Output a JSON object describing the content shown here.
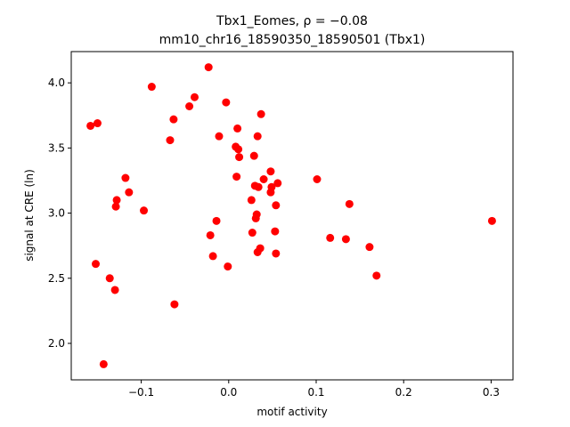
{
  "chart_data": {
    "type": "scatter",
    "title_line1": "Tbx1_Eomes, ρ = −0.08",
    "title_line2": "mm10_chr16_18590350_18590501 (Tbx1)",
    "xlabel": "motif activity",
    "ylabel": "signal at CRE (ln)",
    "xlim": [
      -0.18,
      0.325
    ],
    "ylim": [
      1.72,
      4.24
    ],
    "xticks": [
      -0.1,
      0.0,
      0.1,
      0.2,
      0.3
    ],
    "xtick_labels": [
      "−0.1",
      "0.0",
      "0.1",
      "0.2",
      "0.3"
    ],
    "yticks": [
      2.0,
      2.5,
      3.0,
      3.5,
      4.0
    ],
    "ytick_labels": [
      "2.0",
      "2.5",
      "3.0",
      "3.5",
      "4.0"
    ],
    "grid": false,
    "color": "#ff0000",
    "points": [
      {
        "x": -0.158,
        "y": 3.67
      },
      {
        "x": -0.15,
        "y": 3.69
      },
      {
        "x": -0.152,
        "y": 2.61
      },
      {
        "x": -0.136,
        "y": 2.5
      },
      {
        "x": -0.13,
        "y": 2.41
      },
      {
        "x": -0.143,
        "y": 1.84
      },
      {
        "x": -0.128,
        "y": 3.1
      },
      {
        "x": -0.129,
        "y": 3.05
      },
      {
        "x": -0.118,
        "y": 3.27
      },
      {
        "x": -0.114,
        "y": 3.16
      },
      {
        "x": -0.097,
        "y": 3.02
      },
      {
        "x": -0.088,
        "y": 3.97
      },
      {
        "x": -0.067,
        "y": 3.56
      },
      {
        "x": -0.063,
        "y": 3.72
      },
      {
        "x": -0.062,
        "y": 2.3
      },
      {
        "x": -0.045,
        "y": 3.82
      },
      {
        "x": -0.039,
        "y": 3.89
      },
      {
        "x": -0.023,
        "y": 4.12
      },
      {
        "x": -0.021,
        "y": 2.83
      },
      {
        "x": -0.018,
        "y": 2.67
      },
      {
        "x": -0.014,
        "y": 2.94
      },
      {
        "x": -0.011,
        "y": 3.59
      },
      {
        "x": -0.003,
        "y": 3.85
      },
      {
        "x": -0.001,
        "y": 2.59
      },
      {
        "x": 0.008,
        "y": 3.51
      },
      {
        "x": 0.009,
        "y": 3.28
      },
      {
        "x": 0.01,
        "y": 3.65
      },
      {
        "x": 0.011,
        "y": 3.49
      },
      {
        "x": 0.012,
        "y": 3.43
      },
      {
        "x": 0.026,
        "y": 3.1
      },
      {
        "x": 0.027,
        "y": 2.85
      },
      {
        "x": 0.029,
        "y": 3.44
      },
      {
        "x": 0.03,
        "y": 3.21
      },
      {
        "x": 0.031,
        "y": 2.96
      },
      {
        "x": 0.032,
        "y": 2.99
      },
      {
        "x": 0.033,
        "y": 2.7
      },
      {
        "x": 0.033,
        "y": 3.59
      },
      {
        "x": 0.034,
        "y": 3.2
      },
      {
        "x": 0.036,
        "y": 2.73
      },
      {
        "x": 0.037,
        "y": 3.76
      },
      {
        "x": 0.04,
        "y": 3.26
      },
      {
        "x": 0.048,
        "y": 3.32
      },
      {
        "x": 0.048,
        "y": 3.16
      },
      {
        "x": 0.049,
        "y": 3.2
      },
      {
        "x": 0.053,
        "y": 2.86
      },
      {
        "x": 0.054,
        "y": 3.06
      },
      {
        "x": 0.054,
        "y": 2.69
      },
      {
        "x": 0.056,
        "y": 3.23
      },
      {
        "x": 0.101,
        "y": 3.26
      },
      {
        "x": 0.116,
        "y": 2.81
      },
      {
        "x": 0.134,
        "y": 2.8
      },
      {
        "x": 0.138,
        "y": 3.07
      },
      {
        "x": 0.161,
        "y": 2.74
      },
      {
        "x": 0.169,
        "y": 2.52
      },
      {
        "x": 0.301,
        "y": 2.94
      }
    ]
  }
}
